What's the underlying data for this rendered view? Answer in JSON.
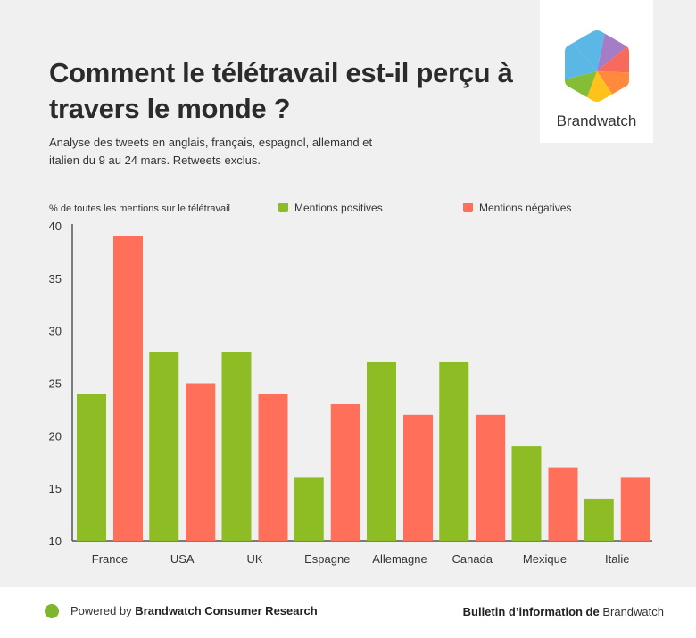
{
  "header": {
    "title": "Comment le télétravail est-il perçu à travers le monde ?",
    "subtitle": "Analyse des tweets en anglais, français, espagnol, allemand et italien du 9 au 24 mars. Retweets exclus."
  },
  "logo": {
    "name": "Brandwatch",
    "icon": "hexagon-pie-logo"
  },
  "footer": {
    "powered_prefix": "Powered by ",
    "powered_brand": "Brandwatch Consumer Research",
    "bulletin_prefix": "Bulletin d’information de ",
    "bulletin_brand": "Brandwatch"
  },
  "chart_data": {
    "type": "bar",
    "ylabel": "% de toutes les mentions sur le télétravail",
    "ylim": [
      10,
      40
    ],
    "yticks": [
      10,
      15,
      20,
      25,
      30,
      35,
      40
    ],
    "categories": [
      "France",
      "USA",
      "UK",
      "Espagne",
      "Allemagne",
      "Canada",
      "Mexique",
      "Italie"
    ],
    "series": [
      {
        "name": "Mentions positives",
        "color": "#8dbc24",
        "values": [
          24,
          28,
          28,
          16,
          27,
          27,
          19,
          14
        ]
      },
      {
        "name": "Mentions négatives",
        "color": "#ff6f5a",
        "values": [
          39,
          25,
          24,
          23,
          22,
          22,
          17,
          16
        ]
      }
    ],
    "legend": "top",
    "grid": false
  }
}
